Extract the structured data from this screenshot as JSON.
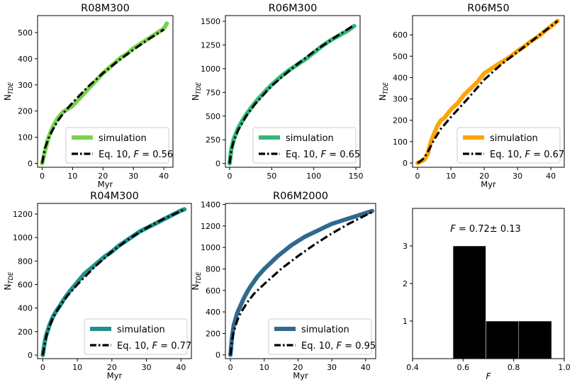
{
  "chart_data": [
    {
      "type": "line",
      "title": "R08M300",
      "xlabel": "Myr",
      "ylabel": "N_TDE",
      "xlim": [
        -1.5,
        43
      ],
      "ylim": [
        -15,
        565
      ],
      "xticks": [
        0,
        10,
        20,
        30,
        40
      ],
      "yticks": [
        0,
        100,
        200,
        300,
        400,
        500
      ],
      "legend": "lower-right",
      "series": [
        {
          "name": "simulation",
          "color": "#7ad151",
          "style": "solid",
          "x": [
            0,
            1,
            2,
            3,
            4,
            5,
            6,
            7,
            8,
            10,
            12,
            14,
            16,
            18,
            20,
            22,
            24,
            26,
            28,
            30,
            32,
            34,
            36,
            38,
            40,
            41
          ],
          "y": [
            0,
            50,
            95,
            125,
            150,
            170,
            185,
            198,
            205,
            220,
            245,
            270,
            295,
            320,
            345,
            365,
            385,
            405,
            420,
            440,
            455,
            470,
            485,
            500,
            515,
            535
          ]
        },
        {
          "name": "Eq. 10, ",
          "F_label": "F",
          "F_value": " = 0.56",
          "color": "#000000",
          "style": "dashdot",
          "x": [
            0,
            1,
            2,
            3,
            5,
            7,
            10,
            15,
            20,
            25,
            30,
            35,
            40
          ],
          "y": [
            0,
            60,
            93,
            118,
            160,
            192,
            232,
            292,
            345,
            392,
            435,
            475,
            512
          ]
        }
      ]
    },
    {
      "type": "line",
      "title": "R06M300",
      "xlabel": "",
      "ylabel": "N_TDE",
      "xlim": [
        -5,
        155
      ],
      "ylim": [
        -40,
        1560
      ],
      "xticks": [
        0,
        50,
        100,
        150
      ],
      "yticks": [
        0,
        250,
        500,
        750,
        1000,
        1250,
        1500
      ],
      "legend": "lower-right",
      "series": [
        {
          "name": "simulation",
          "color": "#35b779",
          "style": "solid",
          "x": [
            0,
            2,
            5,
            10,
            15,
            20,
            30,
            40,
            50,
            60,
            70,
            80,
            90,
            100,
            110,
            120,
            130,
            140,
            148
          ],
          "y": [
            0,
            150,
            260,
            370,
            450,
            520,
            640,
            740,
            830,
            910,
            980,
            1040,
            1100,
            1170,
            1240,
            1300,
            1350,
            1400,
            1450
          ]
        },
        {
          "name": "Eq. 10, ",
          "F_label": "F",
          "F_value": " = 0.65",
          "color": "#000000",
          "style": "dashdot",
          "x": [
            0,
            2,
            5,
            10,
            20,
            30,
            50,
            75,
            100,
            125,
            148
          ],
          "y": [
            0,
            140,
            240,
            350,
            505,
            625,
            820,
            1010,
            1180,
            1330,
            1460
          ]
        }
      ]
    },
    {
      "type": "line",
      "title": "R06M50",
      "xlabel": "Myr",
      "ylabel": "N_TDE",
      "xlim": [
        -1.5,
        44
      ],
      "ylim": [
        -20,
        690
      ],
      "xticks": [
        0,
        10,
        20,
        30,
        40
      ],
      "yticks": [
        0,
        100,
        200,
        300,
        400,
        500,
        600
      ],
      "legend": "lower-right",
      "series": [
        {
          "name": "simulation",
          "color": "#fca50a",
          "style": "solid",
          "x": [
            0,
            2,
            3,
            4,
            5,
            6,
            7,
            8,
            9,
            10,
            12,
            14,
            16,
            18,
            20,
            22,
            24,
            26,
            28,
            30,
            32,
            34,
            36,
            38,
            40,
            42
          ],
          "y": [
            0,
            15,
            40,
            100,
            140,
            175,
            200,
            210,
            230,
            250,
            280,
            320,
            350,
            380,
            420,
            440,
            460,
            480,
            500,
            525,
            545,
            570,
            590,
            615,
            640,
            665
          ]
        },
        {
          "name": "Eq. 10, ",
          "F_label": "F",
          "F_value": " = 0.67",
          "color": "#000000",
          "style": "dashdot",
          "x": [
            0,
            1,
            2,
            3,
            5,
            7,
            10,
            15,
            20,
            25,
            30,
            35,
            40,
            42
          ],
          "y": [
            0,
            10,
            25,
            50,
            110,
            160,
            215,
            300,
            390,
            460,
            520,
            580,
            640,
            665
          ]
        }
      ]
    },
    {
      "type": "line",
      "title": "R04M300",
      "xlabel": "Myr",
      "ylabel": "N_TDE",
      "xlim": [
        -1.5,
        43
      ],
      "ylim": [
        -30,
        1290
      ],
      "xticks": [
        0,
        10,
        20,
        30,
        40
      ],
      "yticks": [
        0,
        200,
        400,
        600,
        800,
        1000,
        1200
      ],
      "legend": "lower-right",
      "series": [
        {
          "name": "simulation",
          "color": "#21918c",
          "style": "solid",
          "x": [
            0,
            0.5,
            1,
            2,
            3,
            4,
            5,
            6,
            7,
            8,
            10,
            12,
            14,
            16,
            18,
            20,
            22,
            24,
            26,
            28,
            30,
            32,
            34,
            36,
            38,
            40,
            41
          ],
          "y": [
            0,
            100,
            170,
            260,
            330,
            380,
            420,
            470,
            510,
            550,
            620,
            690,
            740,
            790,
            840,
            880,
            930,
            970,
            1010,
            1050,
            1080,
            1110,
            1140,
            1170,
            1200,
            1230,
            1240
          ]
        },
        {
          "name": "Eq. 10, ",
          "F_label": "F",
          "F_value": " = 0.77",
          "color": "#000000",
          "style": "dashdot",
          "x": [
            0,
            1,
            2,
            3,
            5,
            7,
            10,
            15,
            20,
            25,
            30,
            35,
            40,
            41
          ],
          "y": [
            0,
            160,
            250,
            320,
            420,
            500,
            600,
            750,
            880,
            990,
            1080,
            1160,
            1225,
            1240
          ]
        }
      ]
    },
    {
      "type": "line",
      "title": "R06M2000",
      "xlabel": "Myr",
      "ylabel": "N_TDE",
      "xlim": [
        -1.5,
        43
      ],
      "ylim": [
        -35,
        1410
      ],
      "xticks": [
        0,
        10,
        20,
        30,
        40
      ],
      "yticks": [
        0,
        200,
        400,
        600,
        800,
        1000,
        1200,
        1400
      ],
      "legend": "lower-right",
      "series": [
        {
          "name": "simulation",
          "color": "#31688e",
          "style": "solid",
          "x": [
            0,
            0.5,
            1,
            2,
            3,
            4,
            5,
            6,
            8,
            10,
            12,
            14,
            16,
            18,
            20,
            22,
            24,
            26,
            28,
            30,
            32,
            34,
            36,
            38,
            40,
            42
          ],
          "y": [
            0,
            180,
            280,
            390,
            460,
            530,
            590,
            640,
            730,
            800,
            860,
            920,
            970,
            1020,
            1060,
            1100,
            1130,
            1160,
            1190,
            1220,
            1240,
            1260,
            1280,
            1300,
            1320,
            1340
          ]
        },
        {
          "name": "Eq. 10, ",
          "F_label": "F",
          "F_value": " = 0.95",
          "color": "#000000",
          "style": "dashdot",
          "x": [
            0,
            0.5,
            1,
            2,
            3,
            5,
            7,
            10,
            15,
            20,
            25,
            30,
            35,
            40,
            42
          ],
          "y": [
            0,
            140,
            220,
            320,
            390,
            490,
            570,
            660,
            800,
            920,
            1030,
            1130,
            1220,
            1300,
            1330
          ]
        }
      ]
    },
    {
      "type": "bar",
      "title": "",
      "annotation_label": "F",
      "annotation_value": " =   0.72± 0.13",
      "xlabel": "F",
      "ylabel": "",
      "xlim": [
        0.4,
        1.0
      ],
      "ylim": [
        0,
        4
      ],
      "xticks": [
        "0.4",
        "0.6",
        "0.8",
        "1.0"
      ],
      "yticks": [
        1,
        2,
        3
      ],
      "color": "#000000",
      "bins": [
        {
          "x0": 0.56,
          "x1": 0.69,
          "count": 3
        },
        {
          "x0": 0.69,
          "x1": 0.82,
          "count": 1
        },
        {
          "x0": 0.82,
          "x1": 0.95,
          "count": 1
        }
      ]
    }
  ]
}
